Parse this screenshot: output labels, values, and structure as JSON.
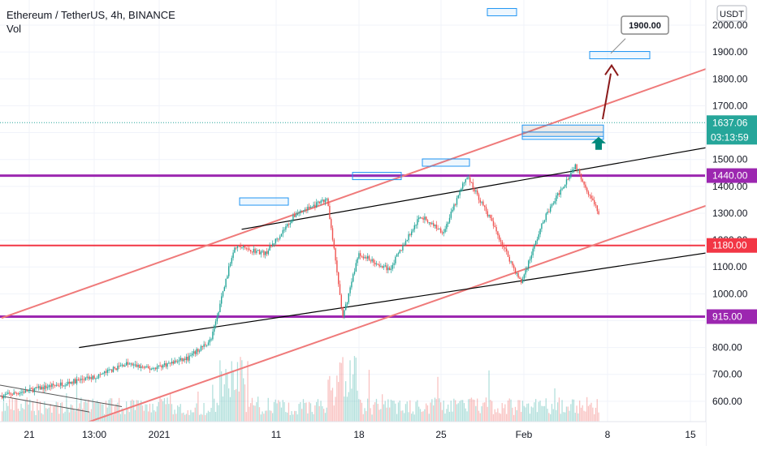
{
  "header": {
    "symbol": "Ethereum / TetherUS, 4h, BINANCE",
    "indicator": "Vol"
  },
  "currency_button": "USDT",
  "chart_data": {
    "type": "candlestick",
    "title": "Ethereum / TetherUS, 4h, BINANCE",
    "indicator": "Vol",
    "y_axis": {
      "ticks": [
        600,
        700,
        800,
        900,
        1000,
        1100,
        1200,
        1300,
        1400,
        1500,
        1600,
        1700,
        1800,
        1900,
        2000
      ],
      "tick_labels": [
        "600.00",
        "700.00",
        "800.00",
        "900.00",
        "1000.00",
        "1100.00",
        "1200.00",
        "1300.00",
        "1400.00",
        "1500.00",
        "1600.00",
        "1700.00",
        "1800.00",
        "1900.00",
        "2000.00"
      ],
      "range": [
        440,
        2070
      ]
    },
    "x_axis": {
      "tick_labels": [
        "21",
        "13:00",
        "2021",
        "11",
        "18",
        "25",
        "Feb",
        "8",
        "15"
      ],
      "range_days": [
        -12,
        33
      ]
    },
    "last_price": {
      "value": 1637.06,
      "label": "1637.06",
      "countdown": "03:13:59"
    },
    "price_levels": [
      {
        "value": 1440,
        "label": "1440.00",
        "color": "#9c27b0"
      },
      {
        "value": 1180,
        "label": "1180.00",
        "color": "#f23645"
      },
      {
        "value": 915,
        "label": "915.00",
        "color": "#9c27b0"
      }
    ],
    "annotation": {
      "value": 1900,
      "label": "1900.00"
    },
    "key_points": {
      "start": {
        "day": -12,
        "price": 620
      },
      "rally_top": {
        "day": 9,
        "price": 1350
      },
      "dip_low": {
        "day": 10,
        "price": 910
      },
      "mid_high": {
        "day": 18,
        "price": 1440
      },
      "low_jan22": {
        "day": 21.5,
        "price": 1040
      },
      "high_jan25": {
        "day": 25,
        "price": 1480
      },
      "current": {
        "day": 39.5,
        "price": 1637
      }
    },
    "trend_lines": [
      {
        "name": "channel-upper",
        "color": "#ef7a7a",
        "from": {
          "day": -12,
          "price": 910
        },
        "to": {
          "day": 40,
          "price": 1970
        }
      },
      {
        "name": "channel-lower",
        "color": "#ef7a7a",
        "from": {
          "day": -9,
          "price": 470
        },
        "to": {
          "day": 43,
          "price": 1520
        }
      },
      {
        "name": "support-upper",
        "color": "#000000",
        "from": {
          "day": 3.5,
          "price": 1240
        },
        "to": {
          "day": 42,
          "price": 1630
        }
      },
      {
        "name": "support-lower",
        "color": "#000000",
        "from": {
          "day": -7,
          "price": 800
        },
        "to": {
          "day": 39,
          "price": 1200
        }
      }
    ],
    "colors": {
      "up": "#26a69a",
      "down": "#ef5350",
      "last_price": "#26a69a",
      "arrow_up": "#00897b",
      "projection": "#8b1a1a"
    },
    "grid": true
  }
}
